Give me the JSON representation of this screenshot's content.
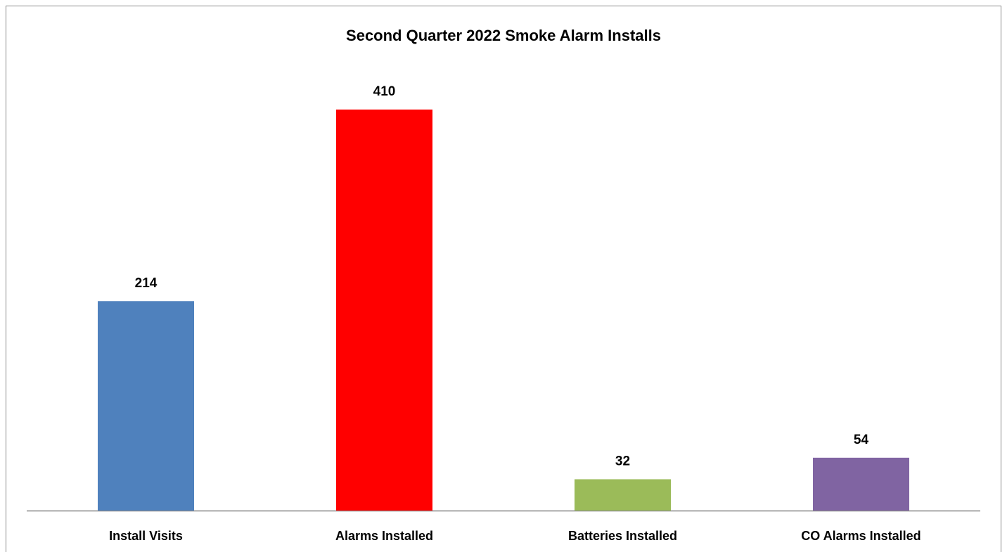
{
  "chart_data": {
    "type": "bar",
    "title": "Second Quarter 2022 Smoke Alarm Installs",
    "categories": [
      "Install Visits",
      "Alarms Installed",
      "Batteries Installed",
      "CO Alarms Installed"
    ],
    "values": [
      214,
      410,
      32,
      54
    ],
    "colors": [
      "#4f81bd",
      "#ff0000",
      "#9bbb59",
      "#8064a2"
    ]
  }
}
